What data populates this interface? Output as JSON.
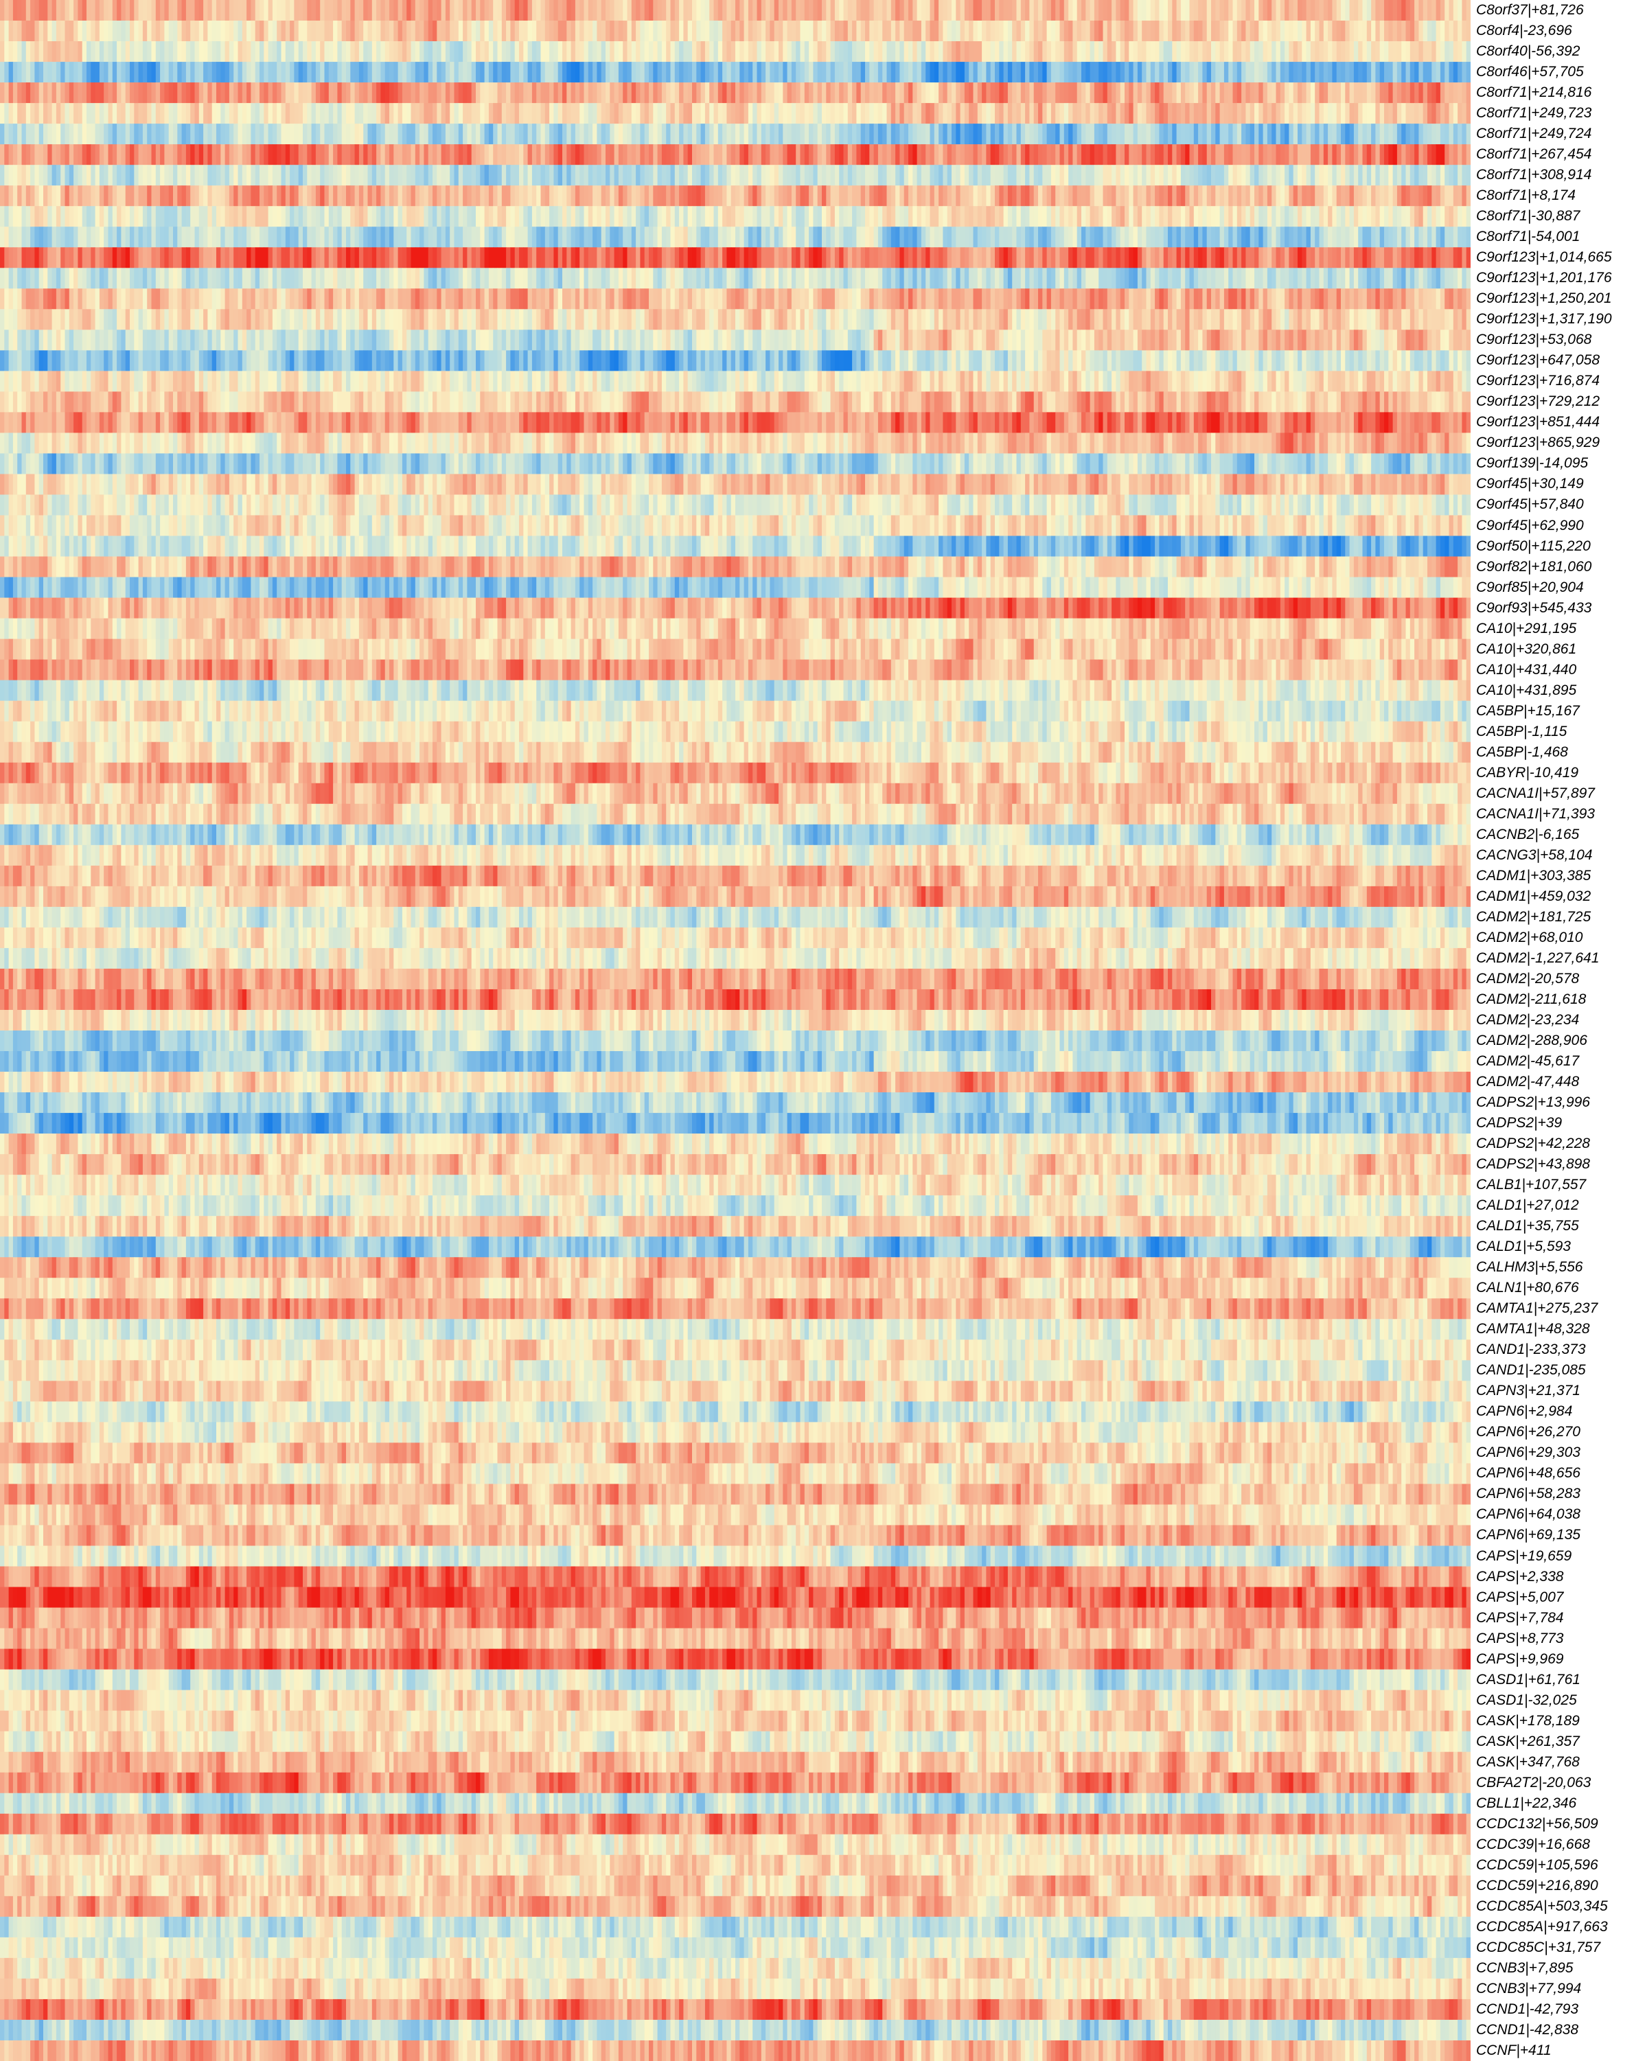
{
  "chart_data": {
    "type": "heatmap",
    "title": "",
    "xlabel": "",
    "ylabel": "",
    "colorscale": {
      "low": "#1a7fe8",
      "mid_low": "#a9d6e5",
      "mid": "#fbf6c8",
      "mid_high": "#f6a88a",
      "high": "#ee1c14"
    },
    "column_groups": [
      {
        "name": "",
        "width_fraction": 0.595
      },
      {
        "name": "",
        "width_fraction": 0.405
      }
    ],
    "rows": [
      {
        "label": "C8orf37|+81,726",
        "g1": 0.35,
        "g2": 0.25
      },
      {
        "label": "C8orf4|-23,696",
        "g1": 0.2,
        "g2": 0.15
      },
      {
        "label": "C8orf40|-56,392",
        "g1": 0.0,
        "g2": 0.05
      },
      {
        "label": "C8orf46|+57,705",
        "g1": -0.55,
        "g2": -0.6
      },
      {
        "label": "C8orf71|+214,816",
        "g1": 0.45,
        "g2": 0.4
      },
      {
        "label": "C8orf71|+249,723",
        "g1": 0.1,
        "g2": 0.3
      },
      {
        "label": "C8orf71|+249,724",
        "g1": -0.35,
        "g2": -0.55
      },
      {
        "label": "C8orf71|+267,454",
        "g1": 0.5,
        "g2": 0.6
      },
      {
        "label": "C8orf71|+308,914",
        "g1": -0.3,
        "g2": -0.2
      },
      {
        "label": "C8orf71|+8,174",
        "g1": 0.4,
        "g2": 0.35
      },
      {
        "label": "C8orf71|-30,887",
        "g1": -0.1,
        "g2": 0.05
      },
      {
        "label": "C8orf71|-54,001",
        "g1": -0.3,
        "g2": -0.45
      },
      {
        "label": "C9orf123|+1,014,665",
        "g1": 0.75,
        "g2": 0.7
      },
      {
        "label": "C9orf123|+1,201,176",
        "g1": -0.25,
        "g2": -0.35
      },
      {
        "label": "C9orf123|+1,250,201",
        "g1": 0.3,
        "g2": 0.45
      },
      {
        "label": "C9orf123|+1,317,190",
        "g1": 0.1,
        "g2": 0.2
      },
      {
        "label": "C9orf123|+53,068",
        "g1": -0.2,
        "g2": 0.25
      },
      {
        "label": "C9orf123|+647,058",
        "g1": -0.6,
        "g2": -0.15
      },
      {
        "label": "C9orf123|+716,874",
        "g1": 0.0,
        "g2": 0.1
      },
      {
        "label": "C9orf123|+729,212",
        "g1": 0.3,
        "g2": 0.35
      },
      {
        "label": "C9orf123|+851,444",
        "g1": 0.55,
        "g2": 0.65
      },
      {
        "label": "C9orf123|+865,929",
        "g1": 0.1,
        "g2": 0.3
      },
      {
        "label": "C9orf139|-14,095",
        "g1": -0.45,
        "g2": -0.35
      },
      {
        "label": "C9orf45|+30,149",
        "g1": 0.2,
        "g2": 0.3
      },
      {
        "label": "C9orf45|+57,840",
        "g1": -0.05,
        "g2": -0.05
      },
      {
        "label": "C9orf45|+62,990",
        "g1": 0.05,
        "g2": 0.15
      },
      {
        "label": "C9orf50|+115,220",
        "g1": -0.2,
        "g2": -0.65
      },
      {
        "label": "C9orf82|+181,060",
        "g1": 0.35,
        "g2": 0.2
      },
      {
        "label": "C9orf85|+20,904",
        "g1": -0.5,
        "g2": -0.1
      },
      {
        "label": "C9orf93|+545,433",
        "g1": 0.4,
        "g2": 0.7
      },
      {
        "label": "CA10|+291,195",
        "g1": 0.15,
        "g2": 0.2
      },
      {
        "label": "CA10|+320,861",
        "g1": 0.25,
        "g2": 0.25
      },
      {
        "label": "CA10|+431,440",
        "g1": 0.45,
        "g2": 0.3
      },
      {
        "label": "CA10|+431,895",
        "g1": -0.2,
        "g2": 0.0
      },
      {
        "label": "CA5BP|+15,167",
        "g1": 0.05,
        "g2": -0.15
      },
      {
        "label": "CA5BP|-1,115",
        "g1": 0.0,
        "g2": 0.0
      },
      {
        "label": "CA5BP|-1,468",
        "g1": 0.15,
        "g2": 0.1
      },
      {
        "label": "CABYR|-10,419",
        "g1": 0.45,
        "g2": 0.25
      },
      {
        "label": "CACNA1I|+57,897",
        "g1": 0.25,
        "g2": 0.3
      },
      {
        "label": "CACNA1I|+71,393",
        "g1": 0.15,
        "g2": 0.2
      },
      {
        "label": "CACNB2|-6,165",
        "g1": -0.35,
        "g2": -0.3
      },
      {
        "label": "CACNG3|+58,104",
        "g1": 0.05,
        "g2": 0.05
      },
      {
        "label": "CADM1|+303,385",
        "g1": 0.4,
        "g2": 0.35
      },
      {
        "label": "CADM1|+459,032",
        "g1": 0.25,
        "g2": 0.45
      },
      {
        "label": "CADM2|+181,725",
        "g1": -0.15,
        "g2": -0.25
      },
      {
        "label": "CADM2|+68,010",
        "g1": 0.1,
        "g2": 0.05
      },
      {
        "label": "CADM2|-1,227,641",
        "g1": 0.0,
        "g2": 0.1
      },
      {
        "label": "CADM2|-20,578",
        "g1": 0.45,
        "g2": 0.5
      },
      {
        "label": "CADM2|-211,618",
        "g1": 0.55,
        "g2": 0.55
      },
      {
        "label": "CADM2|-23,234",
        "g1": 0.05,
        "g2": 0.1
      },
      {
        "label": "CADM2|-288,906",
        "g1": -0.3,
        "g2": -0.35
      },
      {
        "label": "CADM2|-45,617",
        "g1": -0.5,
        "g2": -0.25
      },
      {
        "label": "CADM2|-47,448",
        "g1": 0.1,
        "g2": 0.35
      },
      {
        "label": "CADPS2|+13,996",
        "g1": -0.4,
        "g2": -0.45
      },
      {
        "label": "CADPS2|+39",
        "g1": -0.65,
        "g2": -0.5
      },
      {
        "label": "CADPS2|+42,228",
        "g1": 0.15,
        "g2": 0.1
      },
      {
        "label": "CADPS2|+43,898",
        "g1": 0.25,
        "g2": 0.2
      },
      {
        "label": "CALB1|+107,557",
        "g1": 0.0,
        "g2": 0.1
      },
      {
        "label": "CALD1|+27,012",
        "g1": -0.15,
        "g2": -0.05
      },
      {
        "label": "CALD1|+35,755",
        "g1": 0.25,
        "g2": 0.2
      },
      {
        "label": "CALD1|+5,593",
        "g1": -0.45,
        "g2": -0.55
      },
      {
        "label": "CALHM3|+5,556",
        "g1": 0.35,
        "g2": 0.25
      },
      {
        "label": "CALN1|+80,676",
        "g1": 0.2,
        "g2": 0.2
      },
      {
        "label": "CAMTA1|+275,237",
        "g1": 0.5,
        "g2": 0.4
      },
      {
        "label": "CAMTA1|+48,328",
        "g1": -0.1,
        "g2": -0.05
      },
      {
        "label": "CAND1|-233,373",
        "g1": 0.1,
        "g2": 0.05
      },
      {
        "label": "CAND1|-235,085",
        "g1": 0.05,
        "g2": -0.05
      },
      {
        "label": "CAPN3|+21,371",
        "g1": 0.2,
        "g2": 0.15
      },
      {
        "label": "CAPN6|+2,984",
        "g1": -0.2,
        "g2": -0.25
      },
      {
        "label": "CAPN6|+26,270",
        "g1": 0.05,
        "g2": 0.1
      },
      {
        "label": "CAPN6|+29,303",
        "g1": 0.3,
        "g2": 0.2
      },
      {
        "label": "CAPN6|+48,656",
        "g1": 0.15,
        "g2": 0.1
      },
      {
        "label": "CAPN6|+58,283",
        "g1": 0.4,
        "g2": 0.35
      },
      {
        "label": "CAPN6|+64,038",
        "g1": 0.2,
        "g2": 0.15
      },
      {
        "label": "CAPN6|+69,135",
        "g1": 0.3,
        "g2": 0.4
      },
      {
        "label": "CAPS|+19,659",
        "g1": -0.1,
        "g2": -0.3
      },
      {
        "label": "CAPS|+2,338",
        "g1": 0.6,
        "g2": 0.5
      },
      {
        "label": "CAPS|+5,007",
        "g1": 0.8,
        "g2": 0.75
      },
      {
        "label": "CAPS|+7,784",
        "g1": 0.55,
        "g2": 0.45
      },
      {
        "label": "CAPS|+8,773",
        "g1": 0.35,
        "g2": 0.3
      },
      {
        "label": "CAPS|+9,969",
        "g1": 0.7,
        "g2": 0.65
      },
      {
        "label": "CASD1|+61,761",
        "g1": -0.2,
        "g2": -0.3
      },
      {
        "label": "CASD1|-32,025",
        "g1": 0.15,
        "g2": 0.1
      },
      {
        "label": "CASK|+178,189",
        "g1": 0.1,
        "g2": 0.2
      },
      {
        "label": "CASK|+261,357",
        "g1": 0.05,
        "g2": 0.0
      },
      {
        "label": "CASK|+347,768",
        "g1": 0.3,
        "g2": 0.25
      },
      {
        "label": "CBFA2T2|-20,063",
        "g1": 0.6,
        "g2": 0.5
      },
      {
        "label": "CBLL1|+22,346",
        "g1": -0.3,
        "g2": -0.35
      },
      {
        "label": "CCDC132|+56,509",
        "g1": 0.55,
        "g2": 0.45
      },
      {
        "label": "CCDC39|+16,668",
        "g1": 0.1,
        "g2": 0.05
      },
      {
        "label": "CCDC59|+105,596",
        "g1": 0.15,
        "g2": 0.2
      },
      {
        "label": "CCDC59|+216,890",
        "g1": 0.25,
        "g2": 0.3
      },
      {
        "label": "CCDC85A|+503,345",
        "g1": 0.35,
        "g2": 0.25
      },
      {
        "label": "CCDC85A|+917,663",
        "g1": -0.25,
        "g2": -0.3
      },
      {
        "label": "CCDC85C|+31,757",
        "g1": -0.1,
        "g2": -0.2
      },
      {
        "label": "CCNB3|+7,895",
        "g1": 0.0,
        "g2": 0.05
      },
      {
        "label": "CCNB3|+77,994",
        "g1": 0.15,
        "g2": 0.1
      },
      {
        "label": "CCND1|-42,793",
        "g1": 0.55,
        "g2": 0.5
      },
      {
        "label": "CCND1|-42,838",
        "g1": -0.35,
        "g2": -0.3
      },
      {
        "label": "CCNF|+411",
        "g1": 0.4,
        "g2": 0.35
      }
    ]
  }
}
